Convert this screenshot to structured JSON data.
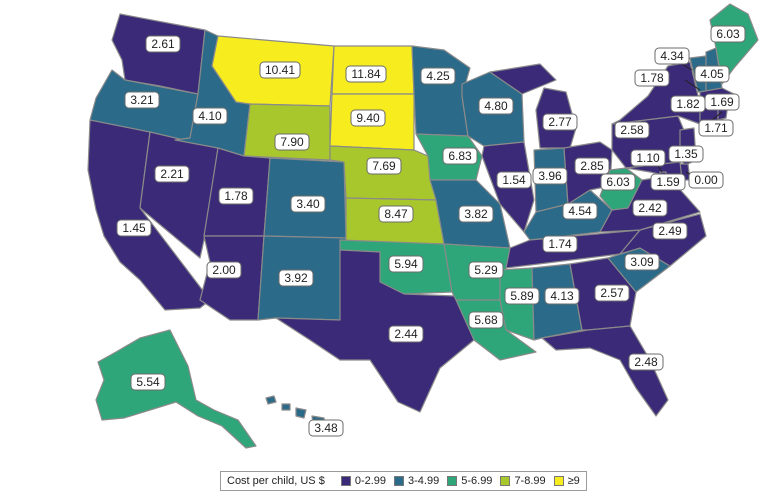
{
  "legend": {
    "title": "Cost per child, US $",
    "bins": [
      {
        "label": "0-2.99",
        "color": "#3b2a78"
      },
      {
        "label": "3-4.99",
        "color": "#2b6a88"
      },
      {
        "label": "5-6.99",
        "color": "#2ea67a"
      },
      {
        "label": "7-8.99",
        "color": "#a7c72d"
      },
      {
        "label": "≥9",
        "color": "#f6ec1e"
      }
    ]
  },
  "states": [
    {
      "id": "WA",
      "value": "2.61",
      "bin": 0
    },
    {
      "id": "OR",
      "value": "3.21",
      "bin": 1
    },
    {
      "id": "CA",
      "value": "1.45",
      "bin": 0
    },
    {
      "id": "NV",
      "value": "2.21",
      "bin": 0
    },
    {
      "id": "ID",
      "value": "4.10",
      "bin": 1
    },
    {
      "id": "MT",
      "value": "10.41",
      "bin": 4
    },
    {
      "id": "WY",
      "value": "7.90",
      "bin": 3
    },
    {
      "id": "UT",
      "value": "1.78",
      "bin": 0
    },
    {
      "id": "AZ",
      "value": "2.00",
      "bin": 0
    },
    {
      "id": "CO",
      "value": "3.40",
      "bin": 1
    },
    {
      "id": "NM",
      "value": "3.92",
      "bin": 1
    },
    {
      "id": "ND",
      "value": "11.84",
      "bin": 4
    },
    {
      "id": "SD",
      "value": "9.40",
      "bin": 4
    },
    {
      "id": "NE",
      "value": "7.69",
      "bin": 3
    },
    {
      "id": "KS",
      "value": "8.47",
      "bin": 3
    },
    {
      "id": "OK",
      "value": "5.94",
      "bin": 2
    },
    {
      "id": "TX",
      "value": "2.44",
      "bin": 0
    },
    {
      "id": "MN",
      "value": "4.25",
      "bin": 1
    },
    {
      "id": "IA",
      "value": "6.83",
      "bin": 2
    },
    {
      "id": "MO",
      "value": "3.82",
      "bin": 1
    },
    {
      "id": "AR",
      "value": "5.29",
      "bin": 2
    },
    {
      "id": "LA",
      "value": "5.68",
      "bin": 2
    },
    {
      "id": "WI",
      "value": "4.80",
      "bin": 1
    },
    {
      "id": "IL",
      "value": "1.54",
      "bin": 0
    },
    {
      "id": "MS",
      "value": "5.89",
      "bin": 2
    },
    {
      "id": "MI",
      "value": "2.77",
      "bin": 0
    },
    {
      "id": "IN",
      "value": "3.96",
      "bin": 1
    },
    {
      "id": "KY",
      "value": "4.54",
      "bin": 1
    },
    {
      "id": "TN",
      "value": "1.74",
      "bin": 0
    },
    {
      "id": "AL",
      "value": "4.13",
      "bin": 1
    },
    {
      "id": "OH",
      "value": "2.85",
      "bin": 0
    },
    {
      "id": "WV",
      "value": "6.03",
      "bin": 2
    },
    {
      "id": "GA",
      "value": "2.57",
      "bin": 0
    },
    {
      "id": "FL",
      "value": "2.48",
      "bin": 0
    },
    {
      "id": "SC",
      "value": "3.09",
      "bin": 1
    },
    {
      "id": "NC",
      "value": "2.49",
      "bin": 0
    },
    {
      "id": "VA",
      "value": "2.42",
      "bin": 0
    },
    {
      "id": "PA",
      "value": "2.58",
      "bin": 0
    },
    {
      "id": "NY",
      "value": "1.82",
      "bin": 0
    },
    {
      "id": "VT",
      "value": "4.34",
      "bin": 1
    },
    {
      "id": "NH",
      "value": "4.05",
      "bin": 1
    },
    {
      "id": "ME",
      "value": "6.03",
      "bin": 2
    },
    {
      "id": "MA",
      "value": "1.69",
      "bin": 0
    },
    {
      "id": "RI",
      "value": "1.71",
      "bin": 0
    },
    {
      "id": "CT",
      "value": "1.78",
      "bin": 0
    },
    {
      "id": "NJ",
      "value": "1.35",
      "bin": 0
    },
    {
      "id": "DE",
      "value": "0.00",
      "bin": 0
    },
    {
      "id": "MD",
      "value": "1.59",
      "bin": 0
    },
    {
      "id": "DC",
      "value": "1.10",
      "bin": 0
    },
    {
      "id": "AK",
      "value": "5.54",
      "bin": 2
    },
    {
      "id": "HI",
      "value": "3.48",
      "bin": 1
    }
  ]
}
